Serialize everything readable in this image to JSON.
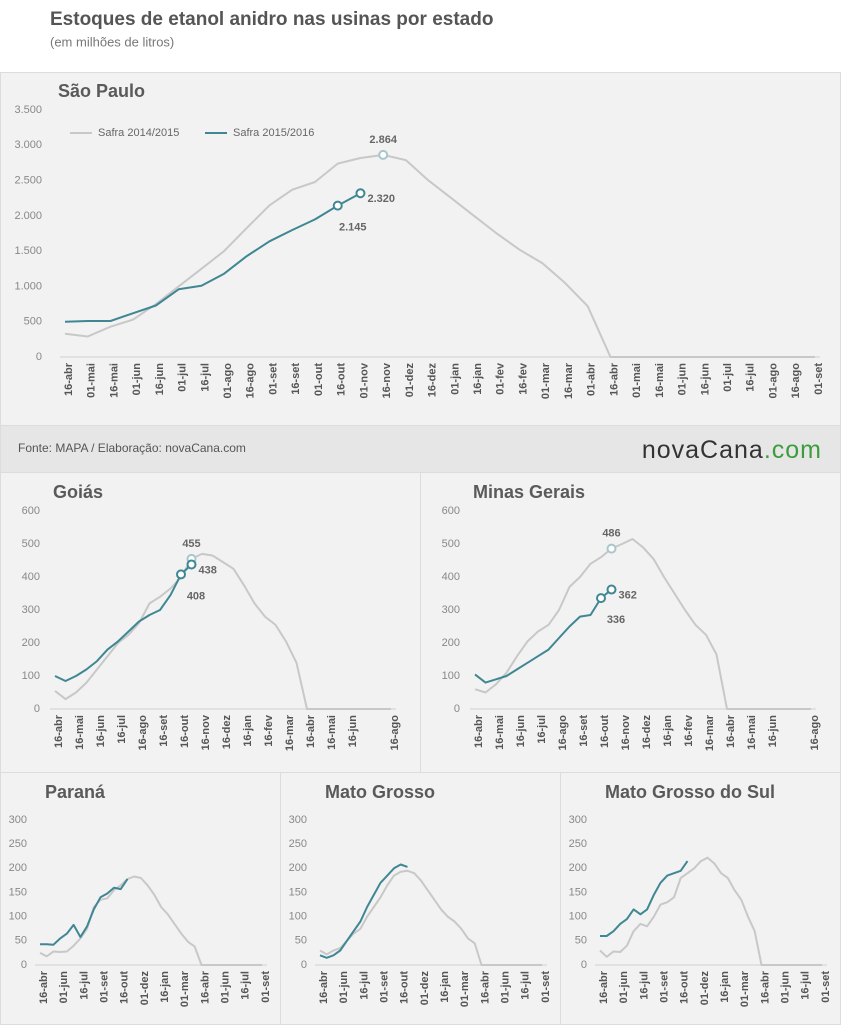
{
  "header": {
    "title": "Estoques de etanol anidro nas usinas por estado",
    "subtitle": "(em milhões de litros)"
  },
  "footer": {
    "source": "Fonte: MAPA / Elaboração: novaCana.com",
    "logo": "novaCana",
    "logo_suffix": ".com"
  },
  "chart_data": [
    {
      "type": "line",
      "title": "São Paulo",
      "legend": "upper left",
      "grid": false,
      "categories": [
        "16-abr",
        "01-mai",
        "16-mai",
        "01-jun",
        "16-jun",
        "01-jul",
        "16-jul",
        "01-ago",
        "16-ago",
        "01-set",
        "16-set",
        "01-out",
        "16-out",
        "01-nov",
        "16-nov",
        "01-dez",
        "16-dez",
        "01-jan",
        "16-jan",
        "01-fev",
        "16-fev",
        "01-mar",
        "16-mar",
        "01-abr",
        "16-abr",
        "01-mai",
        "16-mai",
        "01-jun",
        "16-jun",
        "01-jul",
        "16-jul",
        "01-ago",
        "16-ago",
        "01-set"
      ],
      "ylim": [
        0,
        3500
      ],
      "yticks": [
        0,
        500,
        {
          "value": 1000,
          "label": "1.000"
        },
        {
          "value": 1500,
          "label": "1.500"
        },
        {
          "value": 2000,
          "label": "2.000"
        },
        {
          "value": 2500,
          "label": "2.500"
        },
        {
          "value": 3000,
          "label": "3.000"
        },
        {
          "value": 3500,
          "label": "3.500"
        }
      ],
      "series": [
        {
          "name": "Safra 2014/2015",
          "color": "#c8c8c8",
          "values": [
            330,
            290,
            430,
            530,
            750,
            1000,
            1250,
            1500,
            1830,
            2150,
            2370,
            2480,
            2740,
            2820,
            2864,
            2790,
            2500,
            2250,
            2000,
            1750,
            1520,
            1330,
            1050,
            720,
            0,
            0,
            0,
            0,
            0,
            0,
            0,
            0,
            0,
            0
          ],
          "value_labels": [
            null,
            null,
            null,
            null,
            null,
            null,
            null,
            null,
            null,
            null,
            null,
            null,
            null,
            null,
            "2.864",
            null,
            null,
            null,
            null,
            null,
            null,
            null,
            null,
            null,
            null,
            null,
            null,
            null,
            null,
            null,
            null,
            null,
            null,
            null
          ]
        },
        {
          "name": "Safra 2015/2016",
          "color": "#3f8793",
          "values": [
            500,
            510,
            510,
            620,
            730,
            960,
            1010,
            1180,
            1430,
            1640,
            1800,
            1950,
            2145,
            2320,
            null,
            null,
            null,
            null,
            null,
            null,
            null,
            null,
            null,
            null,
            null,
            null,
            null,
            null,
            null,
            null,
            null,
            null,
            null,
            null
          ],
          "value_labels": [
            null,
            null,
            null,
            null,
            null,
            null,
            null,
            null,
            null,
            null,
            null,
            null,
            "2.145",
            "2.320",
            null,
            null,
            null,
            null,
            null,
            null,
            null,
            null,
            null,
            null,
            null,
            null,
            null,
            null,
            null,
            null,
            null,
            null,
            null,
            null
          ]
        }
      ]
    },
    {
      "type": "line",
      "title": "Goiás",
      "grid": false,
      "categories": [
        "16-abr",
        null,
        "16-mai",
        null,
        "16-jun",
        null,
        "16-jul",
        null,
        "16-ago",
        null,
        "16-set",
        null,
        "16-out",
        null,
        "16-nov",
        null,
        "16-dez",
        null,
        "16-jan",
        null,
        "16-fev",
        null,
        "16-mar",
        null,
        "16-abr",
        null,
        "16-mai",
        null,
        "16-jun",
        null,
        null,
        null,
        "16-ago"
      ],
      "ylim": [
        0,
        600
      ],
      "yticks": [
        0,
        100,
        200,
        300,
        400,
        500,
        600
      ],
      "series": [
        {
          "color": "#c8c8c8",
          "values": [
            55,
            30,
            50,
            80,
            120,
            160,
            200,
            225,
            260,
            320,
            340,
            365,
            400,
            455,
            470,
            465,
            445,
            425,
            375,
            320,
            280,
            255,
            205,
            140,
            0,
            0,
            0,
            0,
            0,
            0,
            0,
            0,
            0
          ],
          "value_labels": [
            null,
            null,
            null,
            null,
            null,
            null,
            null,
            null,
            null,
            null,
            null,
            null,
            null,
            "455",
            null,
            null,
            null,
            null,
            null,
            null,
            null,
            null,
            null,
            null,
            null,
            null,
            null,
            null,
            null,
            null,
            null,
            null,
            null
          ]
        },
        {
          "color": "#3f8793",
          "values": [
            100,
            85,
            100,
            120,
            145,
            180,
            205,
            235,
            265,
            285,
            300,
            345,
            408,
            438,
            null,
            null,
            null,
            null,
            null,
            null,
            null,
            null,
            null,
            null,
            null,
            null,
            null,
            null,
            null,
            null,
            null,
            null,
            null
          ],
          "value_labels": [
            null,
            null,
            null,
            null,
            null,
            null,
            null,
            null,
            null,
            null,
            null,
            null,
            "408",
            "438",
            null,
            null,
            null,
            null,
            null,
            null,
            null,
            null,
            null,
            null,
            null,
            null,
            null,
            null,
            null,
            null,
            null,
            null,
            null
          ]
        }
      ]
    },
    {
      "type": "line",
      "title": "Minas Gerais",
      "grid": false,
      "categories": [
        "16-abr",
        null,
        "16-mai",
        null,
        "16-jun",
        null,
        "16-jul",
        null,
        "16-ago",
        null,
        "16-set",
        null,
        "16-out",
        null,
        "16-nov",
        null,
        "16-dez",
        null,
        "16-jan",
        null,
        "16-fev",
        null,
        "16-mar",
        null,
        "16-abr",
        null,
        "16-mai",
        null,
        "16-jun",
        null,
        null,
        null,
        "16-ago"
      ],
      "ylim": [
        0,
        600
      ],
      "yticks": [
        0,
        100,
        200,
        300,
        400,
        500,
        600
      ],
      "series": [
        {
          "color": "#c8c8c8",
          "values": [
            60,
            50,
            75,
            110,
            160,
            205,
            235,
            255,
            300,
            370,
            400,
            440,
            460,
            486,
            500,
            515,
            490,
            455,
            400,
            350,
            300,
            255,
            225,
            165,
            0,
            0,
            0,
            0,
            0,
            0,
            0,
            0,
            0
          ],
          "value_labels": [
            null,
            null,
            null,
            null,
            null,
            null,
            null,
            null,
            null,
            null,
            null,
            null,
            null,
            "486",
            null,
            null,
            null,
            null,
            null,
            null,
            null,
            null,
            null,
            null,
            null,
            null,
            null,
            null,
            null,
            null,
            null,
            null,
            null
          ]
        },
        {
          "color": "#3f8793",
          "values": [
            105,
            80,
            90,
            100,
            120,
            140,
            160,
            180,
            215,
            250,
            280,
            285,
            336,
            362,
            null,
            null,
            null,
            null,
            null,
            null,
            null,
            null,
            null,
            null,
            null,
            null,
            null,
            null,
            null,
            null,
            null,
            null,
            null
          ],
          "value_labels": [
            null,
            null,
            null,
            null,
            null,
            null,
            null,
            null,
            null,
            null,
            null,
            null,
            "336",
            "362",
            null,
            null,
            null,
            null,
            null,
            null,
            null,
            null,
            null,
            null,
            null,
            null,
            null,
            null,
            null,
            null,
            null,
            null,
            null
          ]
        }
      ]
    },
    {
      "type": "line",
      "title": "Paraná",
      "grid": false,
      "categories": [
        "16-abr",
        null,
        null,
        "01-jun",
        null,
        null,
        "16-jul",
        null,
        null,
        "01-set",
        null,
        null,
        "16-out",
        null,
        null,
        "01-dez",
        null,
        null,
        "16-jan",
        null,
        null,
        "01-mar",
        null,
        null,
        "16-abr",
        null,
        null,
        "01-jun",
        null,
        null,
        "16-jul",
        null,
        null,
        "01-set"
      ],
      "ylim": [
        0,
        300
      ],
      "yticks": [
        0,
        50,
        100,
        150,
        200,
        250,
        300
      ],
      "series": [
        {
          "color": "#c8c8c8",
          "values": [
            25,
            18,
            28,
            27,
            28,
            40,
            55,
            75,
            120,
            135,
            138,
            155,
            165,
            178,
            183,
            180,
            165,
            145,
            120,
            105,
            85,
            65,
            48,
            38,
            0,
            0,
            0,
            0,
            0,
            0,
            0,
            0,
            0,
            0
          ]
        },
        {
          "color": "#3f8793",
          "values": [
            43,
            43,
            42,
            55,
            65,
            83,
            58,
            80,
            115,
            140,
            148,
            160,
            157,
            178,
            null,
            null,
            null,
            null,
            null,
            null,
            null,
            null,
            null,
            null,
            null,
            null,
            null,
            null,
            null,
            null,
            null,
            null,
            null,
            null
          ]
        }
      ]
    },
    {
      "type": "line",
      "title": "Mato Grosso",
      "grid": false,
      "categories": [
        "16-abr",
        null,
        null,
        "01-jun",
        null,
        null,
        "16-jul",
        null,
        null,
        "01-set",
        null,
        null,
        "16-out",
        null,
        null,
        "01-dez",
        null,
        null,
        "16-jan",
        null,
        null,
        "01-mar",
        null,
        null,
        "16-abr",
        null,
        null,
        "01-jun",
        null,
        null,
        "16-jul",
        null,
        null,
        "01-set"
      ],
      "ylim": [
        0,
        300
      ],
      "yticks": [
        0,
        50,
        100,
        150,
        200,
        250,
        300
      ],
      "series": [
        {
          "color": "#c8c8c8",
          "values": [
            30,
            22,
            30,
            35,
            50,
            65,
            75,
            100,
            120,
            140,
            165,
            185,
            193,
            195,
            190,
            175,
            155,
            135,
            115,
            100,
            90,
            75,
            55,
            45,
            0,
            0,
            0,
            0,
            0,
            0,
            0,
            0,
            0,
            0
          ]
        },
        {
          "color": "#3f8793",
          "values": [
            20,
            15,
            20,
            30,
            50,
            70,
            90,
            120,
            145,
            170,
            185,
            200,
            208,
            203,
            null,
            null,
            null,
            null,
            null,
            null,
            null,
            null,
            null,
            null,
            null,
            null,
            null,
            null,
            null,
            null,
            null,
            null,
            null,
            null
          ]
        }
      ]
    },
    {
      "type": "line",
      "title": "Mato Grosso do Sul",
      "grid": false,
      "categories": [
        "16-abr",
        null,
        null,
        "01-jun",
        null,
        null,
        "16-jul",
        null,
        null,
        "01-set",
        null,
        null,
        "16-out",
        null,
        null,
        "01-dez",
        null,
        null,
        "16-jan",
        null,
        null,
        "01-mar",
        null,
        null,
        "16-abr",
        null,
        null,
        "01-jun",
        null,
        null,
        "16-jul",
        null,
        null,
        "01-set"
      ],
      "ylim": [
        0,
        300
      ],
      "yticks": [
        0,
        50,
        100,
        150,
        200,
        250,
        300
      ],
      "series": [
        {
          "color": "#c8c8c8",
          "values": [
            30,
            17,
            28,
            27,
            40,
            70,
            85,
            80,
            100,
            125,
            130,
            140,
            180,
            190,
            200,
            215,
            222,
            210,
            190,
            180,
            155,
            135,
            100,
            70,
            0,
            0,
            0,
            0,
            0,
            0,
            0,
            0,
            0,
            0
          ]
        },
        {
          "color": "#3f8793",
          "values": [
            60,
            60,
            70,
            85,
            95,
            115,
            105,
            115,
            145,
            170,
            185,
            190,
            195,
            215,
            null,
            null,
            null,
            null,
            null,
            null,
            null,
            null,
            null,
            null,
            null,
            null,
            null,
            null,
            null,
            null,
            null,
            null,
            null,
            null
          ]
        }
      ]
    }
  ]
}
